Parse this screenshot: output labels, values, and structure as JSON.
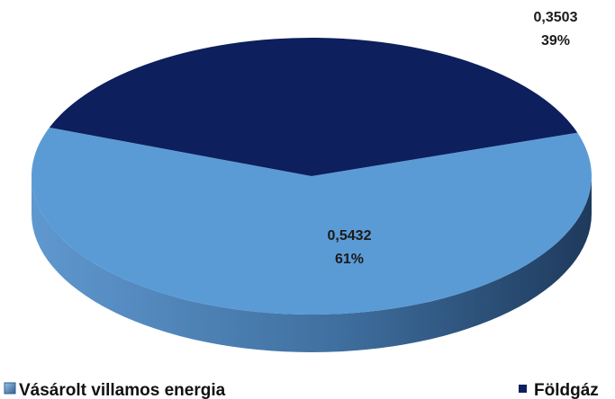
{
  "chart_data": {
    "type": "pie",
    "style": "3d",
    "categories": [
      "Vásárolt villamos energia",
      "Földgáz"
    ],
    "values": [
      0.5432,
      0.3503
    ],
    "percent_labels": [
      "61%",
      "39%"
    ],
    "value_labels": [
      "0,5432",
      "0,3503"
    ],
    "title": "",
    "legend": "bottom",
    "colors": [
      "#5b9bd5",
      "#0d1f5c"
    ]
  }
}
